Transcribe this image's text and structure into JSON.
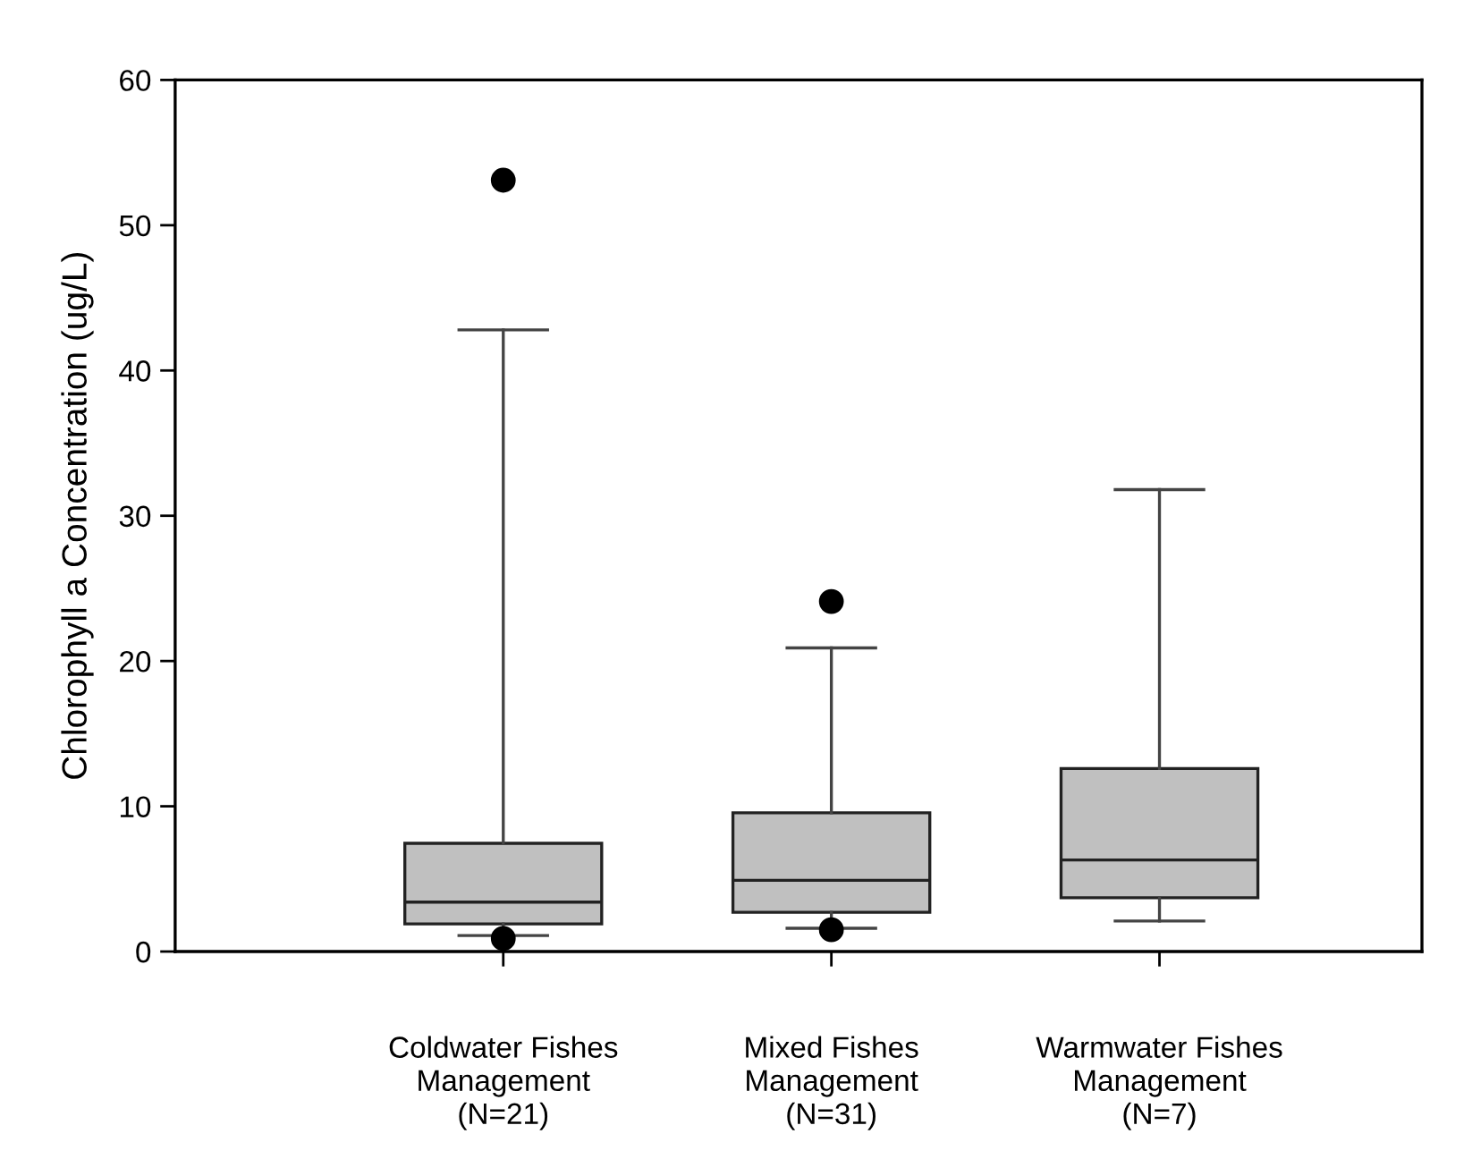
{
  "chart_data": {
    "type": "box",
    "ylabel": "Chlorophyll a Concentration (ug/L)",
    "categories": [
      "Coldwater Fishes\nManagement\n(N=21)",
      "Mixed Fishes\nManagement\n(N=31)",
      "Warmwater Fishes\nManagement\n(N=7)"
    ],
    "boxes": [
      {
        "low": 1.1,
        "q1": 1.9,
        "median": 3.4,
        "q3": 7.45,
        "high": 42.8,
        "outliers": [
          53.1,
          0.9
        ]
      },
      {
        "low": 1.6,
        "q1": 2.7,
        "median": 4.9,
        "q3": 9.55,
        "high": 20.9,
        "outliers": [
          24.1,
          1.5
        ]
      },
      {
        "low": 2.1,
        "q1": 3.7,
        "median": 6.3,
        "q3": 12.6,
        "high": 31.8
      }
    ],
    "color": "#c0c0c0",
    "ylim": [
      0,
      60
    ],
    "yticks": [
      0,
      10,
      20,
      30,
      40,
      50,
      60
    ],
    "grid": false,
    "legend": false
  }
}
